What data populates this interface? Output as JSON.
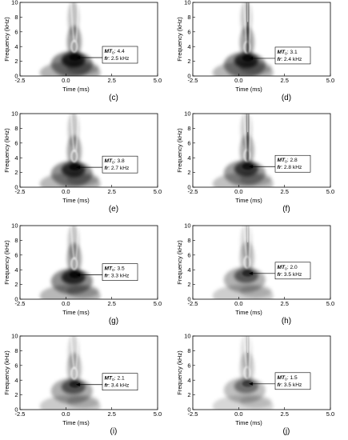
{
  "chart_data": [
    {
      "type": "heatmap",
      "panel": "c",
      "caption": "(c)",
      "xlabel": "Time (ms)",
      "ylabel": "Frequency (kHz)",
      "x_ticks": [
        "-2.5",
        "0.0",
        "2.5",
        "5.0"
      ],
      "y_ticks": [
        "0",
        "2",
        "4",
        "6",
        "8",
        "10"
      ],
      "xlim": [
        -2.5,
        5.0
      ],
      "ylim": [
        0,
        10
      ],
      "annotation": {
        "mt_label": "MT",
        "mt_sub": "o",
        "mt_value": ": 4.4",
        "fr_label": "fr",
        "fr_value": ": 2.5 kHz"
      },
      "peak": {
        "time_ms": 0.5,
        "freq_khz": 2.5
      },
      "intensity": 0.85,
      "upper_streak": 0.1
    },
    {
      "type": "heatmap",
      "panel": "d",
      "caption": "(d)",
      "xlabel": "Time (ms)",
      "ylabel": "Frequency (kHz)",
      "x_ticks": [
        "-2.5",
        "0.0",
        "2.5",
        "5.0"
      ],
      "y_ticks": [
        "0",
        "2",
        "4",
        "6",
        "8",
        "10"
      ],
      "xlim": [
        -2.5,
        5.0
      ],
      "ylim": [
        0,
        10
      ],
      "annotation": {
        "mt_label": "MT",
        "mt_sub": "o",
        "mt_value": ": 3.1",
        "fr_label": "fr",
        "fr_value": ": 2.4 kHz"
      },
      "peak": {
        "time_ms": 0.5,
        "freq_khz": 2.4
      },
      "intensity": 0.8,
      "upper_streak": 0.9
    },
    {
      "type": "heatmap",
      "panel": "e",
      "caption": "(e)",
      "xlabel": "Time (ms)",
      "ylabel": "Frequency (kHz)",
      "x_ticks": [
        "-2.5",
        "0.0",
        "2.5",
        "5.0"
      ],
      "y_ticks": [
        "0",
        "2",
        "4",
        "6",
        "8",
        "10"
      ],
      "xlim": [
        -2.5,
        5.0
      ],
      "ylim": [
        0,
        10
      ],
      "annotation": {
        "mt_label": "MT",
        "mt_sub": "o",
        "mt_value": ": 3.8",
        "fr_label": "fr",
        "fr_value": ": 2.7 kHz"
      },
      "peak": {
        "time_ms": 0.5,
        "freq_khz": 2.7
      },
      "intensity": 0.78,
      "upper_streak": 0.15
    },
    {
      "type": "heatmap",
      "panel": "f",
      "caption": "(f)",
      "xlabel": "Time (ms)",
      "ylabel": "Frequency (kHz)",
      "x_ticks": [
        "-2.5",
        "0.0",
        "2.5",
        "5.0"
      ],
      "y_ticks": [
        "0",
        "2",
        "4",
        "6",
        "8",
        "10"
      ],
      "xlim": [
        -2.5,
        5.0
      ],
      "ylim": [
        0,
        10
      ],
      "annotation": {
        "mt_label": "MT",
        "mt_sub": "o",
        "mt_value": ": 2.8",
        "fr_label": "fr",
        "fr_value": ": 2.8 kHz"
      },
      "peak": {
        "time_ms": 0.5,
        "freq_khz": 2.8
      },
      "intensity": 0.7,
      "upper_streak": 0.85
    },
    {
      "type": "heatmap",
      "panel": "g",
      "caption": "(g)",
      "xlabel": "Time (ms)",
      "ylabel": "Frequency (kHz)",
      "x_ticks": [
        "-2.5",
        "0.0",
        "2.5",
        "5.0"
      ],
      "y_ticks": [
        "0",
        "2",
        "4",
        "6",
        "8",
        "10"
      ],
      "xlim": [
        -2.5,
        5.0
      ],
      "ylim": [
        0,
        10
      ],
      "annotation": {
        "mt_label": "MT",
        "mt_sub": "o",
        "mt_value": ": 3.5",
        "fr_label": "fr",
        "fr_value": ": 3.3 kHz"
      },
      "peak": {
        "time_ms": 0.5,
        "freq_khz": 3.3
      },
      "intensity": 0.8,
      "upper_streak": 0.1
    },
    {
      "type": "heatmap",
      "panel": "h",
      "caption": "(h)",
      "xlabel": "Time (ms)",
      "ylabel": "Frequency (kHz)",
      "x_ticks": [
        "-2.5",
        "0.0",
        "2.5",
        "5.0"
      ],
      "y_ticks": [
        "0",
        "2",
        "4",
        "6",
        "8",
        "10"
      ],
      "xlim": [
        -2.5,
        5.0
      ],
      "ylim": [
        0,
        10
      ],
      "annotation": {
        "mt_label": "MT",
        "mt_sub": "o",
        "mt_value": ": 2.0",
        "fr_label": "fr",
        "fr_value": ": 3.5 kHz"
      },
      "peak": {
        "time_ms": 0.5,
        "freq_khz": 3.5
      },
      "intensity": 0.55,
      "upper_streak": 0.35
    },
    {
      "type": "heatmap",
      "panel": "i",
      "caption": "(i)",
      "xlabel": "Time (ms)",
      "ylabel": "Frequency (kHz)",
      "x_ticks": [
        "-2.5",
        "0.0",
        "2.5",
        "5.0"
      ],
      "y_ticks": [
        "0",
        "2",
        "4",
        "6",
        "8",
        "10"
      ],
      "xlim": [
        -2.5,
        5.0
      ],
      "ylim": [
        0,
        10
      ],
      "annotation": {
        "mt_label": "MT",
        "mt_sub": "o",
        "mt_value": ": 2.1",
        "fr_label": "fr",
        "fr_value": ": 3.4 kHz"
      },
      "peak": {
        "time_ms": 0.5,
        "freq_khz": 3.4
      },
      "intensity": 0.58,
      "upper_streak": 0.1
    },
    {
      "type": "heatmap",
      "panel": "j",
      "caption": "(j)",
      "xlabel": "Time (ms)",
      "ylabel": "Frequency (kHz)",
      "x_ticks": [
        "-2.5",
        "0.0",
        "2.5",
        "5.0"
      ],
      "y_ticks": [
        "0",
        "2",
        "4",
        "6",
        "8",
        "10"
      ],
      "xlim": [
        -2.5,
        5.0
      ],
      "ylim": [
        0,
        10
      ],
      "annotation": {
        "mt_label": "MT",
        "mt_sub": "o",
        "mt_value": ": 1.5",
        "fr_label": "fr",
        "fr_value": ": 3.5 kHz"
      },
      "peak": {
        "time_ms": 0.5,
        "freq_khz": 3.5
      },
      "intensity": 0.45,
      "upper_streak": 0.3
    }
  ]
}
